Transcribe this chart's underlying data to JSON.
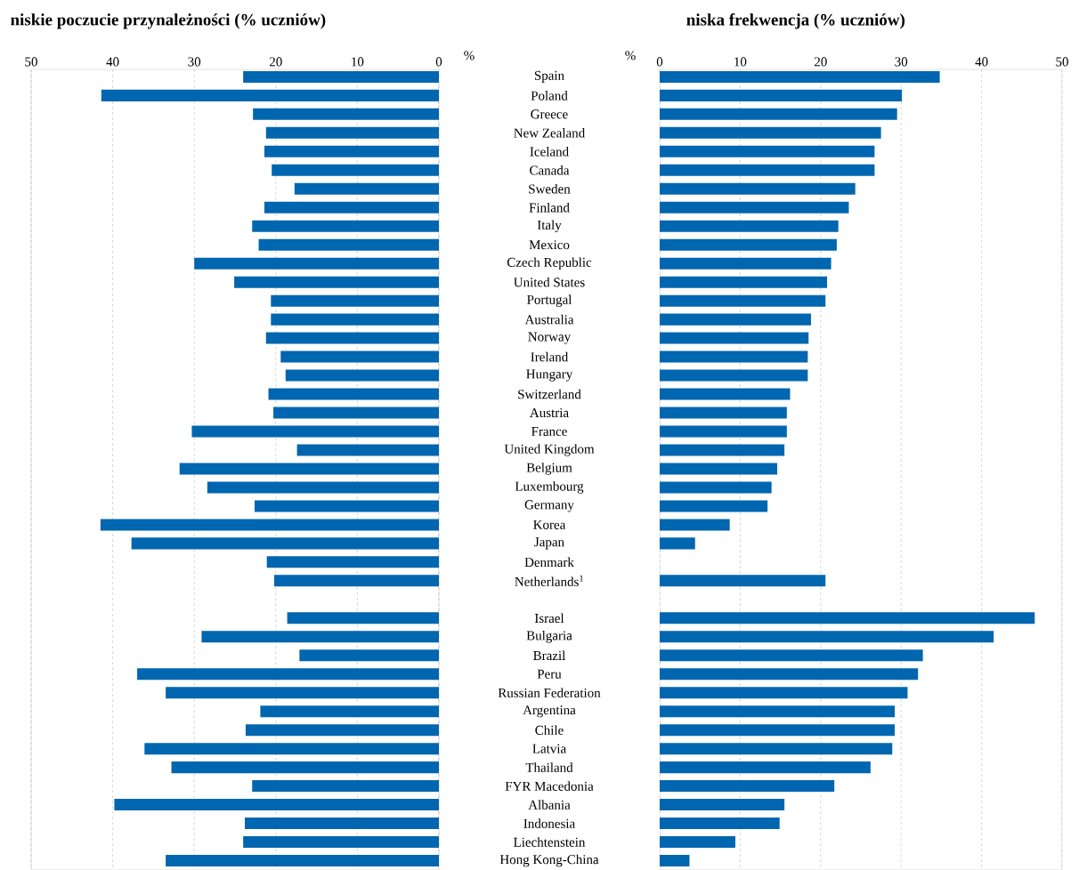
{
  "chart_data": [
    {
      "type": "bar",
      "orientation": "horizontal",
      "title": "niskie poczucie przynależności (% uczniów)",
      "xlabel": "%",
      "categories": [
        "Spain",
        "Poland",
        "Greece",
        "New Zealand",
        "Iceland",
        "Canada",
        "Sweden",
        "Finland",
        "Italy",
        "Mexico",
        "Czech Republic",
        "United States",
        "Portugal",
        "Australia",
        "Norway",
        "Ireland",
        "Hungary",
        "Switzerland",
        "Austria",
        "France",
        "United Kingdom",
        "Belgium",
        "Luxembourg",
        "Germany",
        "Korea",
        "Japan",
        "Denmark",
        "Netherlands$^{1}$",
        null,
        "Israel",
        "Bulgaria",
        "Brazil",
        "Peru",
        "Russian Federation",
        "Argentina",
        "Chile",
        "Latvia",
        "Thailand",
        "FYR Macedonia",
        "Albania",
        "Indonesia",
        "Liechtenstein",
        "Hong Kong-China"
      ],
      "values": [
        24.0,
        41.4,
        22.8,
        21.2,
        21.4,
        20.5,
        17.7,
        21.4,
        22.9,
        22.1,
        30.0,
        25.1,
        20.6,
        20.6,
        21.2,
        19.4,
        18.8,
        20.9,
        20.3,
        30.3,
        17.4,
        31.8,
        28.4,
        22.6,
        41.5,
        37.7,
        21.1,
        20.2,
        null,
        18.6,
        29.1,
        17.1,
        37.0,
        33.5,
        21.9,
        23.7,
        36.1,
        32.8,
        22.9,
        39.8,
        23.8,
        24.0,
        33.5
      ],
      "color": "#0066b0",
      "xlim": [
        50,
        0
      ],
      "xticks": [
        50,
        40,
        30,
        20,
        10,
        0
      ],
      "grid": "x"
    },
    {
      "type": "bar",
      "orientation": "horizontal",
      "title": "niska frekwencja (% uczniów)",
      "xlabel": "%",
      "values": [
        34.8,
        30.1,
        29.5,
        27.5,
        26.7,
        26.7,
        24.3,
        23.5,
        22.2,
        22.0,
        21.3,
        20.8,
        20.6,
        18.8,
        18.5,
        18.4,
        18.4,
        16.2,
        15.8,
        15.8,
        15.5,
        14.6,
        13.9,
        13.4,
        8.7,
        4.4,
        null,
        20.6,
        null,
        46.6,
        41.5,
        32.7,
        32.1,
        30.8,
        29.2,
        29.2,
        28.9,
        26.2,
        21.7,
        15.5,
        14.9,
        9.4,
        3.7
      ],
      "color": "#0066b0",
      "xlim": [
        0,
        50
      ],
      "xticks": [
        0,
        10,
        20,
        30,
        40,
        50
      ],
      "grid": "x",
      "tick_labels": "x"
    }
  ]
}
